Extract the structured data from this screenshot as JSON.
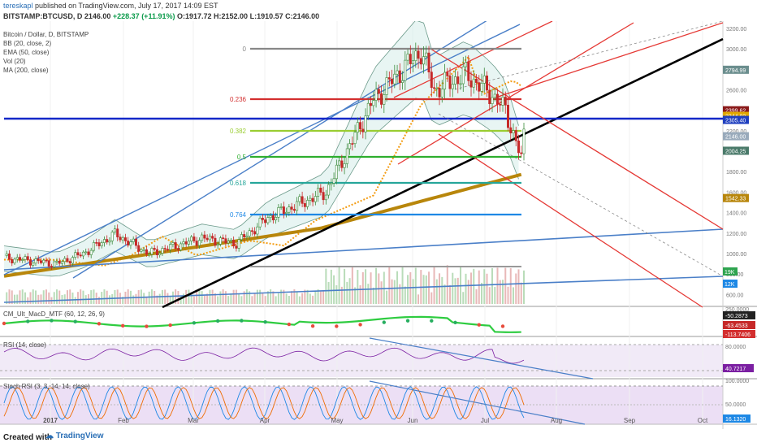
{
  "header": {
    "author": "tereskapl",
    "published": "published on TradingView.com, July 17, 2017 14:09 EST",
    "symbol": "BITSTAMP:BTCUSD, D",
    "price": "2146.00",
    "change": "+228.37 (+11.91%)",
    "open": "O:1917.72",
    "high": "H:2152.00",
    "low": "L:1910.57",
    "close": "C:2146.00"
  },
  "legend": {
    "title": "Bitcoin / Dollar, D, BITSTAMP",
    "indicators": [
      "BB (20, close, 2)",
      "EMA (50, close)",
      "Vol (20)",
      "MA (200, close)"
    ],
    "macd": "CM_Ult_MacD_MTF (60, 12, 26, 9)",
    "rsi": "RSI (14, close)",
    "stoch": "Stoch RSI (3, 3, 14, 14, close)"
  },
  "footer": {
    "created_with": "Created with",
    "brand": "TradingView"
  },
  "colors": {
    "up": "#3a8a3a",
    "down": "#c62828",
    "accent": "#2a6fb6"
  },
  "chart_data": {
    "type": "candlestick",
    "x_ticks": [
      "2017",
      "Feb",
      "Mar",
      "Apr",
      "May",
      "Jun",
      "Jul",
      "Aug",
      "Sep",
      "Oct"
    ],
    "price_axis": [
      "3200.00",
      "3000.00",
      "2800.00",
      "2600.00",
      "2400.00",
      "2200.00",
      "2000.00",
      "1800.00",
      "1600.00",
      "1400.00",
      "1200.00",
      "1000.00",
      "800.00",
      "600.00"
    ],
    "price_tags": [
      {
        "label": "2794.99",
        "value": 2794.99,
        "color": "#6b8e8e"
      },
      {
        "label": "2399.62",
        "value": 2399.62,
        "color": "#8b1a1a"
      },
      {
        "label": "2344.82",
        "value": 2344.82,
        "color": "#e0a800"
      },
      {
        "label": "2305.40",
        "value": 2305.4,
        "color": "#1f3fbf"
      },
      {
        "label": "2146.00",
        "value": 2146.0,
        "color": "#9ab"
      },
      {
        "label": "2004.25",
        "value": 2004.25,
        "color": "#4a7a6a"
      },
      {
        "label": "1542.33",
        "value": 1542.33,
        "color": "#b8860b"
      }
    ],
    "volume_tags": [
      "19K",
      "12K"
    ],
    "fib_levels": [
      {
        "label": "0",
        "value": 3000,
        "color": "#888888"
      },
      {
        "label": "0.236",
        "value": 2450,
        "color": "#d32f2f"
      },
      {
        "label": "0.382",
        "value": 2220,
        "color": "#9acd32"
      },
      {
        "label": "0.5",
        "value": 1930,
        "color": "#2eae2e"
      },
      {
        "label": "0.618",
        "value": 1680,
        "color": "#26a69a"
      },
      {
        "label": "0.764",
        "value": 1380,
        "color": "#1e88e5"
      }
    ],
    "close_series": [
      {
        "month": "2017-01",
        "close": 960
      },
      {
        "month": "2017-02",
        "close": 1190
      },
      {
        "month": "2017-03",
        "close": 1080
      },
      {
        "month": "2017-04",
        "close": 1350
      },
      {
        "month": "2017-05",
        "close": 2300
      },
      {
        "month": "2017-06",
        "close": 2500
      },
      {
        "month": "2017-07",
        "close": 2146
      }
    ],
    "macd_axis": [
      "250.0000",
      "-50.2873",
      "-63.4533",
      "-113.7406"
    ],
    "rsi_axis": [
      "80.0000",
      "40.7217"
    ],
    "stoch_axis": [
      "100.0000",
      "50.0000",
      "16.1320"
    ]
  }
}
